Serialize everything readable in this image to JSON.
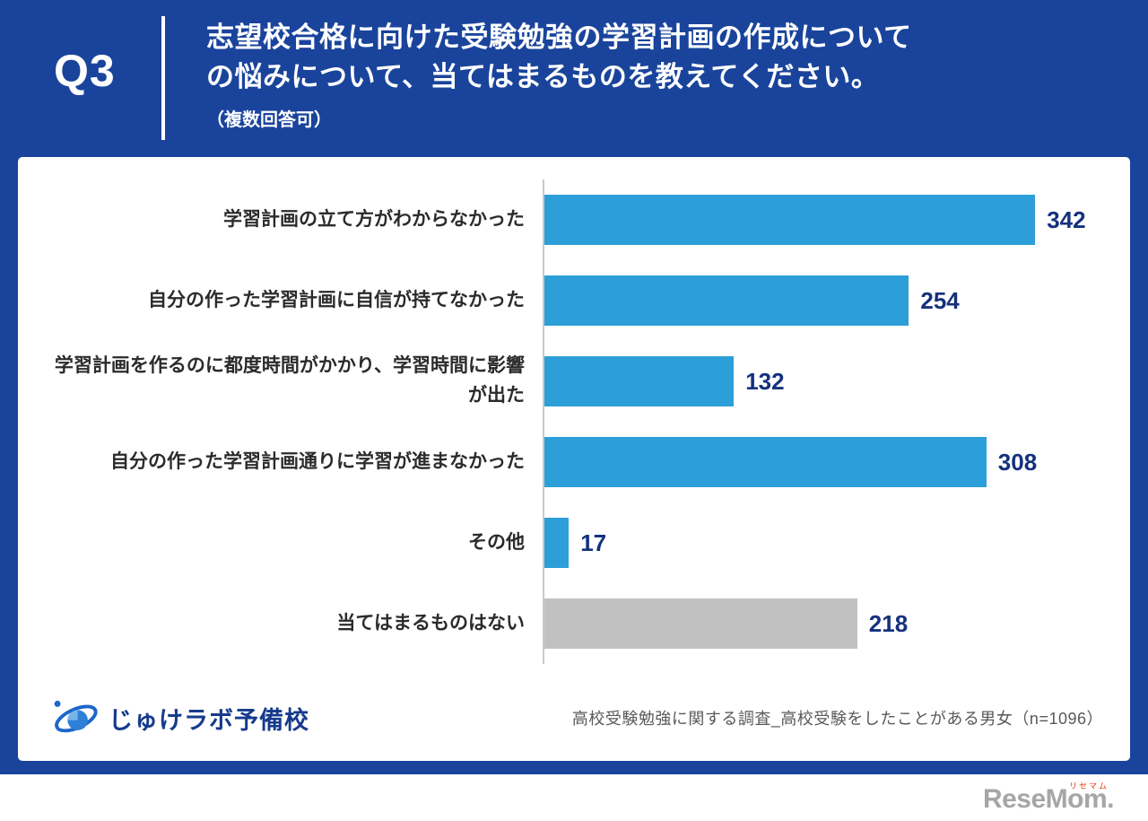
{
  "header": {
    "q_label": "Q3",
    "title_line1": "志望校合格に向けた受験勉強の学習計画の作成について",
    "title_line2": "の悩みについて、当てはまるものを教えてください。",
    "note": "（複数回答可）"
  },
  "chart_data": {
    "type": "bar",
    "orientation": "horizontal",
    "title": "志望校合格に向けた受験勉強の学習計画の作成についての悩みについて、当てはまるものを教えてください。（複数回答可）",
    "categories": [
      "学習計画の立て方がわからなかった",
      "自分の作った学習計画に自信が持てなかった",
      "学習計画を作るのに都度時間がかかり、学習時間に影響が出た",
      "自分の作った学習計画通りに学習が進まなかった",
      "その他",
      "当てはまるものはない"
    ],
    "values": [
      342,
      254,
      132,
      308,
      17,
      218
    ],
    "bar_colors": [
      "#2D9FD8",
      "#2D9FD8",
      "#2D9FD8",
      "#2D9FD8",
      "#2D9FD8",
      "#C1C1C1"
    ],
    "xlim": [
      0,
      380
    ],
    "grid": false,
    "legend": false,
    "value_labels_shown": true
  },
  "footer": {
    "logo_text": "じゅけラボ予備校",
    "source": "高校受験勉強に関する調査_高校受験をしたことがある男女（n=1096）"
  },
  "branding": {
    "name": "ReseMom.",
    "kana": "リセマム"
  },
  "colors": {
    "background_blue": "#1A449C",
    "bar_blue": "#2D9FD8",
    "bar_gray": "#C1C1C1",
    "value_text": "#14317D"
  }
}
